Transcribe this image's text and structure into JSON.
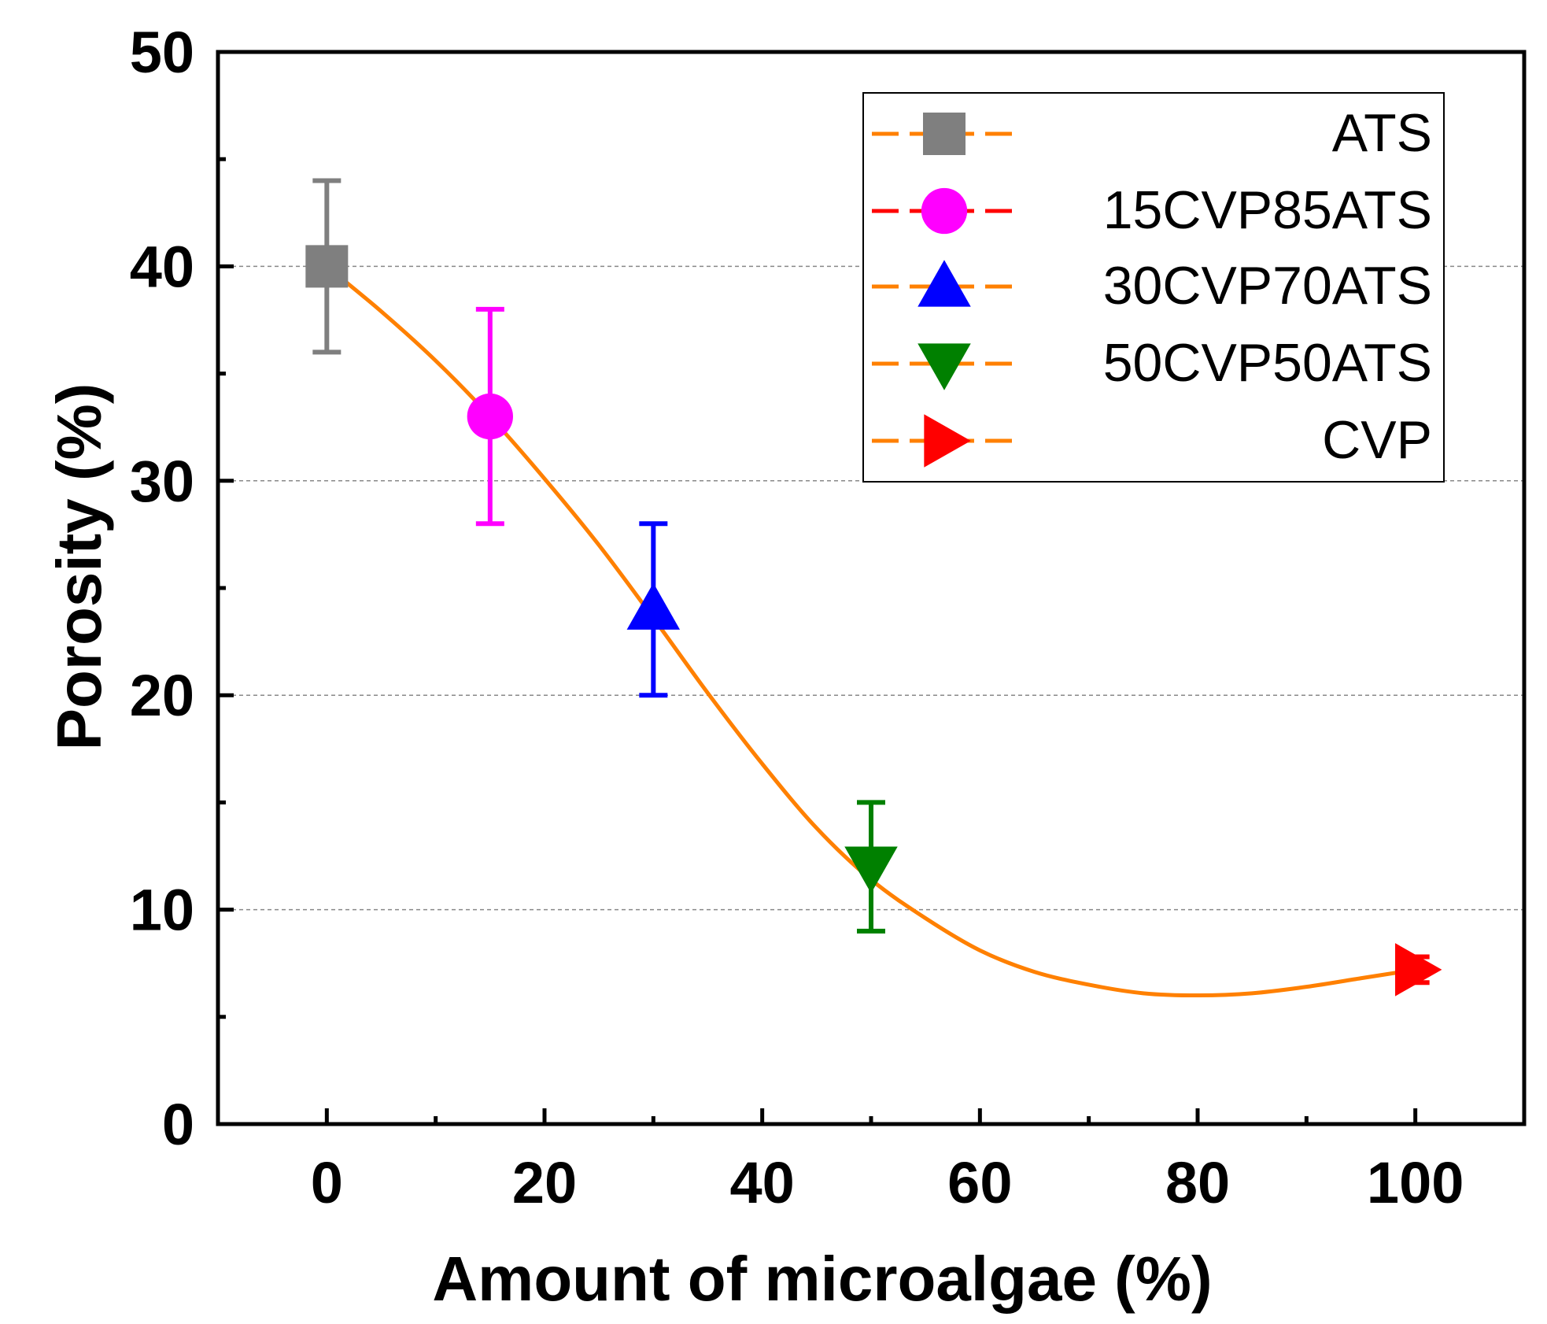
{
  "chart_data": {
    "type": "scatter",
    "xlabel": "Amount of microalgae (%)",
    "ylabel": "Porosity (%)",
    "xlim": [
      -10,
      110
    ],
    "ylim": [
      0,
      50
    ],
    "x_ticks": [
      0,
      20,
      40,
      60,
      80,
      100
    ],
    "y_ticks": [
      0,
      10,
      20,
      30,
      40,
      50
    ],
    "grid": "horizontal dashed at major y ticks",
    "legend_position": "top-right",
    "series": [
      {
        "name": "ATS",
        "x": 0,
        "y": 40,
        "err": 4,
        "color": "#7f7f7f",
        "marker": "square"
      },
      {
        "name": "15CVP85ATS",
        "x": 15,
        "y": 33,
        "err": 5,
        "color": "#ff00ff",
        "marker": "circle"
      },
      {
        "name": "30CVP70ATS",
        "x": 30,
        "y": 24,
        "err": 4,
        "color": "#0000ff",
        "marker": "triangle-up"
      },
      {
        "name": "50CVP50ATS",
        "x": 50,
        "y": 12,
        "err": 3,
        "color": "#008000",
        "marker": "triangle-down"
      },
      {
        "name": "CVP",
        "x": 100,
        "y": 7.2,
        "err": 0.6,
        "color": "#ff0000",
        "marker": "triangle-right"
      }
    ],
    "fit_curve": {
      "color": "#ff8000",
      "points": [
        [
          0,
          40
        ],
        [
          5,
          37.9
        ],
        [
          10,
          35.6
        ],
        [
          15,
          33
        ],
        [
          20,
          30.1
        ],
        [
          25,
          27
        ],
        [
          30,
          23.6
        ],
        [
          35,
          20.1
        ],
        [
          40,
          16.8
        ],
        [
          45,
          13.8
        ],
        [
          50,
          11.4
        ],
        [
          55,
          9.6
        ],
        [
          60,
          8.1
        ],
        [
          65,
          7.1
        ],
        [
          70,
          6.5
        ],
        [
          75,
          6.1
        ],
        [
          80,
          6.0
        ],
        [
          85,
          6.1
        ],
        [
          90,
          6.4
        ],
        [
          95,
          6.8
        ],
        [
          100,
          7.2
        ]
      ]
    },
    "legend_line_colors": [
      "#ff8000",
      "#ff0000",
      "#ff8000",
      "#ff8000",
      "#ff8000"
    ]
  }
}
